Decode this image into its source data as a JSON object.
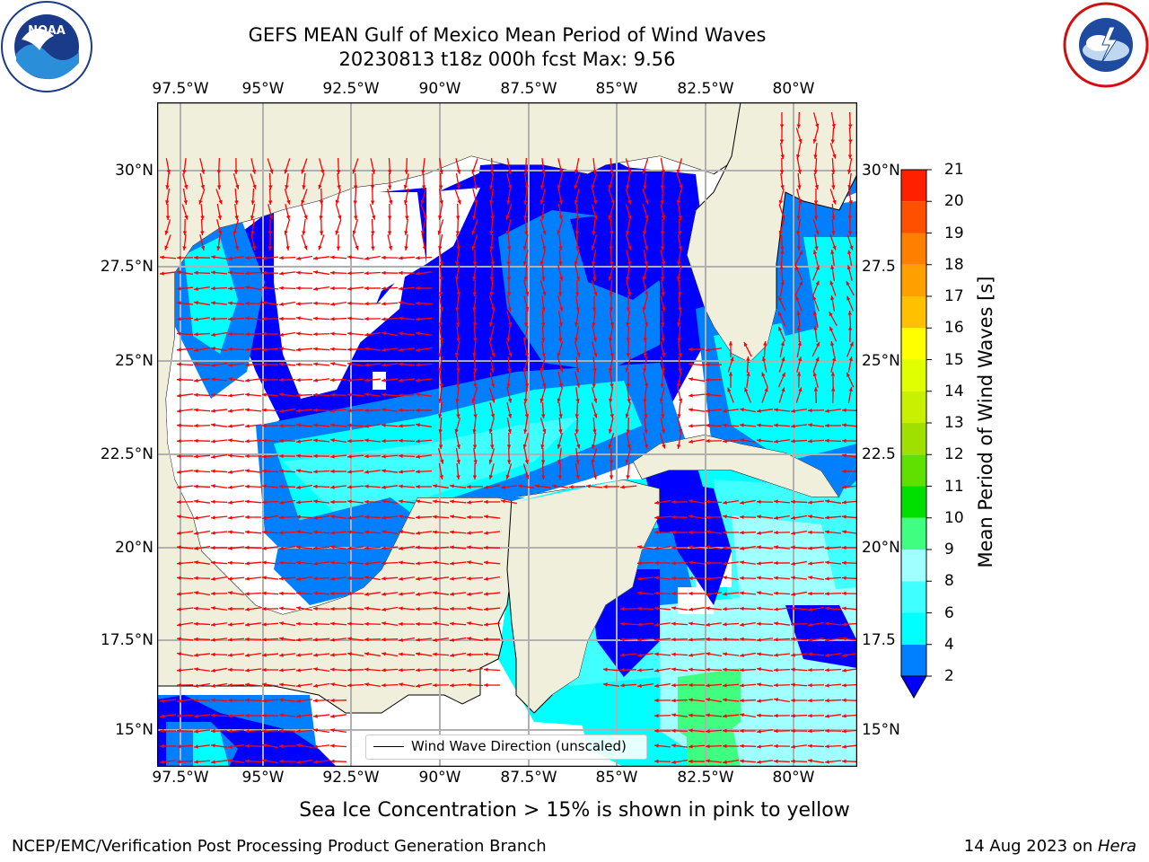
{
  "title_line1": "GEFS MEAN Gulf of Mexico Mean Period of Wind Waves",
  "title_line2": "20230813 t18z 000h fcst   Max: 9.56",
  "x_ticks": [
    "97.5°W",
    "95°W",
    "92.5°W",
    "90°W",
    "87.5°W",
    "85°W",
    "82.5°W",
    "80°W"
  ],
  "y_ticks_left": [
    "30°N",
    "27.5°N",
    "25°N",
    "22.5°N",
    "20°N",
    "17.5°N",
    "15°N"
  ],
  "y_ticks_right": [
    "30°N",
    "27.5",
    "25°N",
    "22.5",
    "20°N",
    "17.5",
    "15°N"
  ],
  "legend_label": "Wind Wave Direction (unscaled)",
  "colorbar": {
    "label": "Mean Period of Wind Waves [s]",
    "ticks": [
      "2",
      "4",
      "6",
      "8",
      "9",
      "10",
      "11",
      "12",
      "13",
      "14",
      "15",
      "16",
      "17",
      "18",
      "19",
      "20",
      "21"
    ],
    "colors": [
      "#0000ff",
      "#0080ff",
      "#00ffff",
      "#40ffff",
      "#a0ffff",
      "#40ff80",
      "#00e000",
      "#60e000",
      "#a0e000",
      "#c8f000",
      "#e0ff00",
      "#ffff00",
      "#ffc000",
      "#ffa000",
      "#ff8000",
      "#ff5000",
      "#ff2000",
      "#ff0000"
    ]
  },
  "map": {
    "land_color": "#efefdc",
    "grid_color": "#b0b0b0",
    "arrow_color": "#ff0000",
    "wind_wave_period_max_s": 9.56
  },
  "sea_ice_note": "Sea Ice Concentration > 15% is shown in pink to yellow",
  "credit_left": "NCEP/EMC/Verification Post Processing Product Generation Branch",
  "credit_right_date": "14 Aug 2023 on ",
  "credit_right_host": "Hera",
  "logos": [
    "noaa-logo",
    "nws-logo"
  ]
}
